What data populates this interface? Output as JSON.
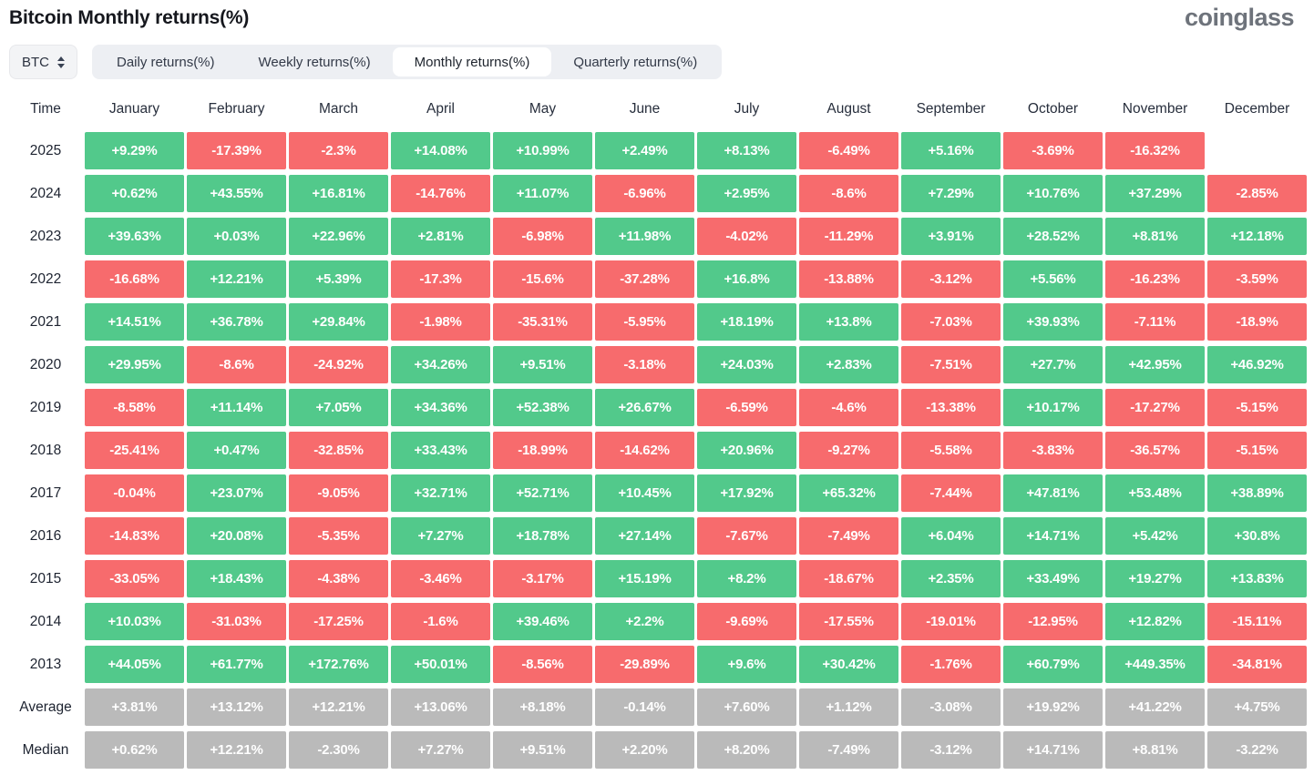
{
  "title": "Bitcoin Monthly returns(%)",
  "logo": "coinglass",
  "asset_selector": {
    "label": "BTC"
  },
  "tabs": [
    {
      "label": "Daily returns(%)",
      "active": false
    },
    {
      "label": "Weekly returns(%)",
      "active": false
    },
    {
      "label": "Monthly returns(%)",
      "active": true
    },
    {
      "label": "Quarterly returns(%)",
      "active": false
    }
  ],
  "colors": {
    "positive": "#52c98b",
    "negative": "#f76b6d",
    "neutral": "#bababa"
  },
  "chart_data": {
    "type": "heatmap",
    "title": "Bitcoin Monthly returns(%)",
    "columns": [
      "Time",
      "January",
      "February",
      "March",
      "April",
      "May",
      "June",
      "July",
      "August",
      "September",
      "October",
      "November",
      "December"
    ],
    "rows": [
      {
        "label": "2025",
        "summary": false,
        "values": [
          "+9.29%",
          "-17.39%",
          "-2.3%",
          "+14.08%",
          "+10.99%",
          "+2.49%",
          "+8.13%",
          "-6.49%",
          "+5.16%",
          "-3.69%",
          "-16.32%",
          null
        ]
      },
      {
        "label": "2024",
        "summary": false,
        "values": [
          "+0.62%",
          "+43.55%",
          "+16.81%",
          "-14.76%",
          "+11.07%",
          "-6.96%",
          "+2.95%",
          "-8.6%",
          "+7.29%",
          "+10.76%",
          "+37.29%",
          "-2.85%"
        ]
      },
      {
        "label": "2023",
        "summary": false,
        "values": [
          "+39.63%",
          "+0.03%",
          "+22.96%",
          "+2.81%",
          "-6.98%",
          "+11.98%",
          "-4.02%",
          "-11.29%",
          "+3.91%",
          "+28.52%",
          "+8.81%",
          "+12.18%"
        ]
      },
      {
        "label": "2022",
        "summary": false,
        "values": [
          "-16.68%",
          "+12.21%",
          "+5.39%",
          "-17.3%",
          "-15.6%",
          "-37.28%",
          "+16.8%",
          "-13.88%",
          "-3.12%",
          "+5.56%",
          "-16.23%",
          "-3.59%"
        ]
      },
      {
        "label": "2021",
        "summary": false,
        "values": [
          "+14.51%",
          "+36.78%",
          "+29.84%",
          "-1.98%",
          "-35.31%",
          "-5.95%",
          "+18.19%",
          "+13.8%",
          "-7.03%",
          "+39.93%",
          "-7.11%",
          "-18.9%"
        ]
      },
      {
        "label": "2020",
        "summary": false,
        "values": [
          "+29.95%",
          "-8.6%",
          "-24.92%",
          "+34.26%",
          "+9.51%",
          "-3.18%",
          "+24.03%",
          "+2.83%",
          "-7.51%",
          "+27.7%",
          "+42.95%",
          "+46.92%"
        ]
      },
      {
        "label": "2019",
        "summary": false,
        "values": [
          "-8.58%",
          "+11.14%",
          "+7.05%",
          "+34.36%",
          "+52.38%",
          "+26.67%",
          "-6.59%",
          "-4.6%",
          "-13.38%",
          "+10.17%",
          "-17.27%",
          "-5.15%"
        ]
      },
      {
        "label": "2018",
        "summary": false,
        "values": [
          "-25.41%",
          "+0.47%",
          "-32.85%",
          "+33.43%",
          "-18.99%",
          "-14.62%",
          "+20.96%",
          "-9.27%",
          "-5.58%",
          "-3.83%",
          "-36.57%",
          "-5.15%"
        ]
      },
      {
        "label": "2017",
        "summary": false,
        "values": [
          "-0.04%",
          "+23.07%",
          "-9.05%",
          "+32.71%",
          "+52.71%",
          "+10.45%",
          "+17.92%",
          "+65.32%",
          "-7.44%",
          "+47.81%",
          "+53.48%",
          "+38.89%"
        ]
      },
      {
        "label": "2016",
        "summary": false,
        "values": [
          "-14.83%",
          "+20.08%",
          "-5.35%",
          "+7.27%",
          "+18.78%",
          "+27.14%",
          "-7.67%",
          "-7.49%",
          "+6.04%",
          "+14.71%",
          "+5.42%",
          "+30.8%"
        ]
      },
      {
        "label": "2015",
        "summary": false,
        "values": [
          "-33.05%",
          "+18.43%",
          "-4.38%",
          "-3.46%",
          "-3.17%",
          "+15.19%",
          "+8.2%",
          "-18.67%",
          "+2.35%",
          "+33.49%",
          "+19.27%",
          "+13.83%"
        ]
      },
      {
        "label": "2014",
        "summary": false,
        "values": [
          "+10.03%",
          "-31.03%",
          "-17.25%",
          "-1.6%",
          "+39.46%",
          "+2.2%",
          "-9.69%",
          "-17.55%",
          "-19.01%",
          "-12.95%",
          "+12.82%",
          "-15.11%"
        ]
      },
      {
        "label": "2013",
        "summary": false,
        "values": [
          "+44.05%",
          "+61.77%",
          "+172.76%",
          "+50.01%",
          "-8.56%",
          "-29.89%",
          "+9.6%",
          "+30.42%",
          "-1.76%",
          "+60.79%",
          "+449.35%",
          "-34.81%"
        ]
      },
      {
        "label": "Average",
        "summary": true,
        "values": [
          "+3.81%",
          "+13.12%",
          "+12.21%",
          "+13.06%",
          "+8.18%",
          "-0.14%",
          "+7.60%",
          "+1.12%",
          "-3.08%",
          "+19.92%",
          "+41.22%",
          "+4.75%"
        ]
      },
      {
        "label": "Median",
        "summary": true,
        "values": [
          "+0.62%",
          "+12.21%",
          "-2.30%",
          "+7.27%",
          "+9.51%",
          "+2.20%",
          "+8.20%",
          "-7.49%",
          "-3.12%",
          "+14.71%",
          "+8.81%",
          "-3.22%"
        ]
      }
    ]
  }
}
